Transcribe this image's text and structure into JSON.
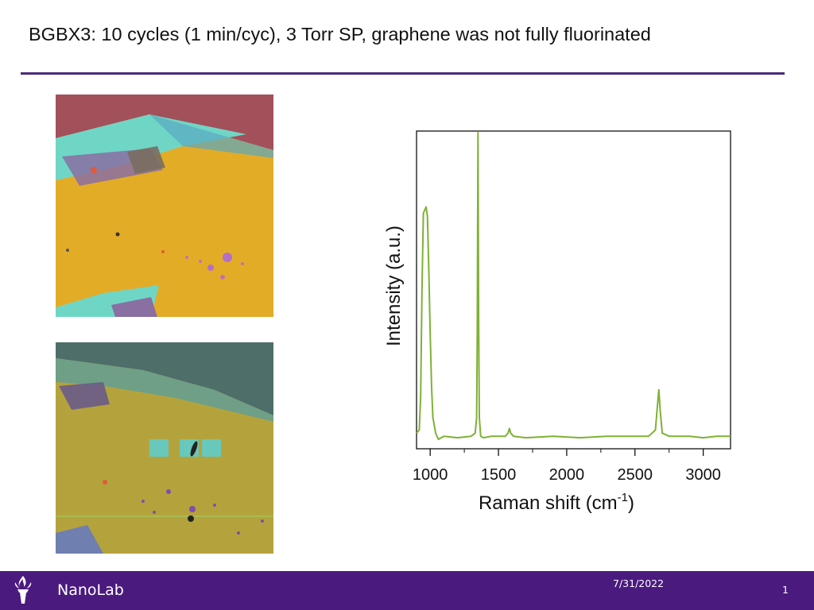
{
  "slide": {
    "title": "BGBX3: 10 cycles (1 min/cyc), 3 Torr SP, graphene was not fully fluorinated"
  },
  "footer": {
    "brand": "NanoLab",
    "date": "7/31/2022",
    "page_number": "1",
    "logo_icon": "torch-icon"
  },
  "colors": {
    "accent_purple": "#4b1a7e",
    "spectrum_green": "#7fb135",
    "substrate_yellow": "#e3ac27",
    "flake_cyan": "#6fd6c6",
    "background_red": "#a2505a"
  },
  "chart_data": {
    "type": "line",
    "title": "",
    "xlabel": "Raman shift (cm",
    "xlabel_superscript": "-1",
    "xlabel_suffix": ")",
    "ylabel": "Intensity (a.u.)",
    "xlim": [
      900,
      3200
    ],
    "ylim": [
      0,
      1
    ],
    "x_ticks": [
      1000,
      1500,
      2000,
      2500,
      3000
    ],
    "y_ticks_shown": false,
    "grid": false,
    "series": [
      {
        "color": "#7fb135",
        "x": [
          900,
          920,
          930,
          940,
          950,
          960,
          970,
          980,
          990,
          1000,
          1010,
          1020,
          1040,
          1060,
          1100,
          1200,
          1300,
          1330,
          1340,
          1345,
          1350,
          1355,
          1360,
          1370,
          1390,
          1450,
          1550,
          1570,
          1580,
          1590,
          1610,
          1700,
          1900,
          2100,
          2300,
          2500,
          2600,
          2650,
          2665,
          2675,
          2685,
          2700,
          2750,
          2900,
          3000,
          3100,
          3200
        ],
        "y": [
          0.03,
          0.04,
          0.15,
          0.5,
          0.74,
          0.75,
          0.76,
          0.73,
          0.55,
          0.35,
          0.18,
          0.08,
          0.03,
          0.01,
          0.02,
          0.015,
          0.02,
          0.03,
          0.08,
          0.35,
          1.0,
          0.4,
          0.08,
          0.02,
          0.015,
          0.02,
          0.02,
          0.03,
          0.045,
          0.03,
          0.02,
          0.015,
          0.02,
          0.015,
          0.02,
          0.02,
          0.02,
          0.04,
          0.12,
          0.17,
          0.1,
          0.03,
          0.02,
          0.02,
          0.015,
          0.02,
          0.02
        ]
      }
    ]
  }
}
